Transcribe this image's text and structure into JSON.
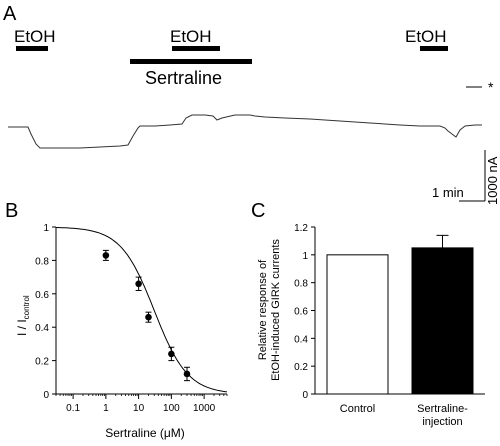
{
  "panel_a": {
    "letter": "A",
    "bars": [
      {
        "label": "EtOH"
      },
      {
        "label": "EtOH"
      },
      {
        "label": "EtOH"
      }
    ],
    "drug_bar_label": "Sertraline",
    "asterisk": "*",
    "scale_time": "1 min",
    "scale_current": "1000 nA"
  },
  "panel_b": {
    "letter": "B",
    "ylabel_main": "I / I",
    "ylabel_sub": "control",
    "xlabel": "Sertraline (μM)",
    "chart_data": {
      "type": "scatter",
      "x_scale": "log",
      "xlim": [
        0.03,
        5000
      ],
      "ylim": [
        0,
        1
      ],
      "x_ticks": [
        "0.1",
        "1",
        "10",
        "100",
        "1000"
      ],
      "y_ticks": [
        "0",
        "0.2",
        "0.4",
        "0.6",
        "0.8",
        "1"
      ],
      "points": [
        {
          "x": 1,
          "y": 0.83,
          "err": 0.03
        },
        {
          "x": 10,
          "y": 0.66,
          "err": 0.04
        },
        {
          "x": 20,
          "y": 0.46,
          "err": 0.03
        },
        {
          "x": 100,
          "y": 0.24,
          "err": 0.04
        },
        {
          "x": 300,
          "y": 0.12,
          "err": 0.04
        }
      ],
      "fit": {
        "ic50": 30,
        "hill": 0.85
      }
    }
  },
  "panel_c": {
    "letter": "C",
    "ylabel_line1": "Relative response of",
    "ylabel_line2": "EtOH-induced GIRK currents",
    "chart_data": {
      "type": "bar",
      "ylim": [
        0,
        1.2
      ],
      "y_ticks": [
        "0",
        "0.2",
        "0.4",
        "0.6",
        "0.8",
        "1",
        "1.2"
      ],
      "categories": [
        {
          "line1": "Control",
          "line2": ""
        },
        {
          "line1": "Sertraline-",
          "line2": "injection"
        }
      ],
      "values": [
        1.0,
        1.05
      ],
      "errors": [
        0,
        0.09
      ],
      "fills": [
        "#ffffff",
        "#000000"
      ]
    }
  }
}
